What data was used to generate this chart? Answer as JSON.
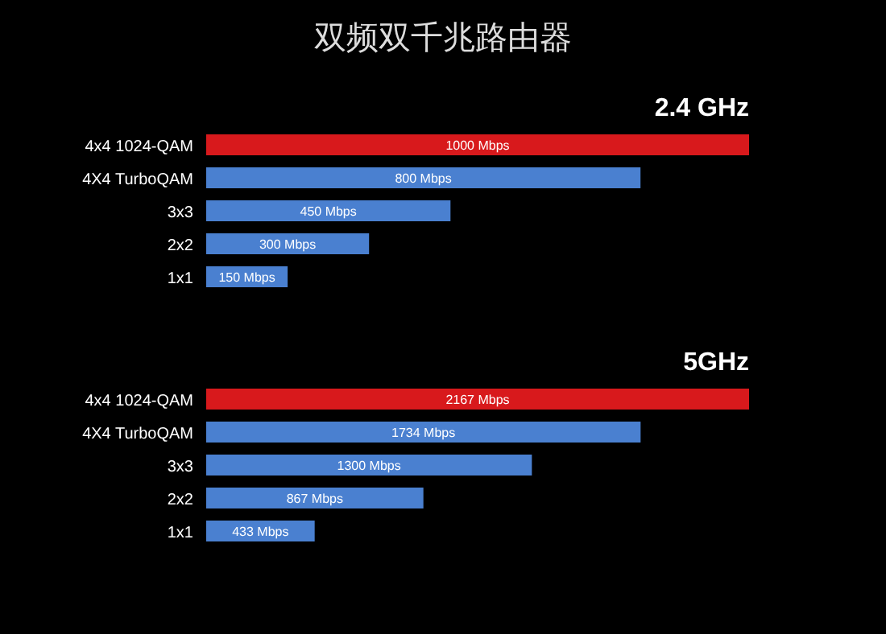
{
  "chart_data": [
    {
      "type": "bar",
      "orientation": "horizontal",
      "title": "双频双千兆路由器",
      "subtitle": "2.4 GHz",
      "categories": [
        "4x4 1024-QAM",
        "4X4 TurboQAM",
        "3x3",
        "2x2",
        "1x1"
      ],
      "values": [
        1000,
        800,
        450,
        300,
        150
      ],
      "colors": [
        "#d8191c",
        "#4a80d0",
        "#4a80d0",
        "#4a80d0",
        "#4a80d0"
      ],
      "value_labels": [
        "1000 Mbps",
        "800 Mbps",
        "450 Mbps",
        "300 Mbps",
        "150 Mbps"
      ]
    },
    {
      "type": "bar",
      "orientation": "horizontal",
      "subtitle": "5GHz",
      "categories": [
        "4x4 1024-QAM",
        "4X4 TurboQAM",
        "3x3",
        "2x2",
        "1x1"
      ],
      "values": [
        2167,
        1734,
        1300,
        867,
        433
      ],
      "colors": [
        "#d8191c",
        "#4a80d0",
        "#4a80d0",
        "#4a80d0",
        "#4a80d0"
      ],
      "value_labels": [
        "2167 Mbps",
        "1734 Mbps",
        "1300 Mbps",
        "867 Mbps",
        "433 Mbps"
      ]
    }
  ]
}
